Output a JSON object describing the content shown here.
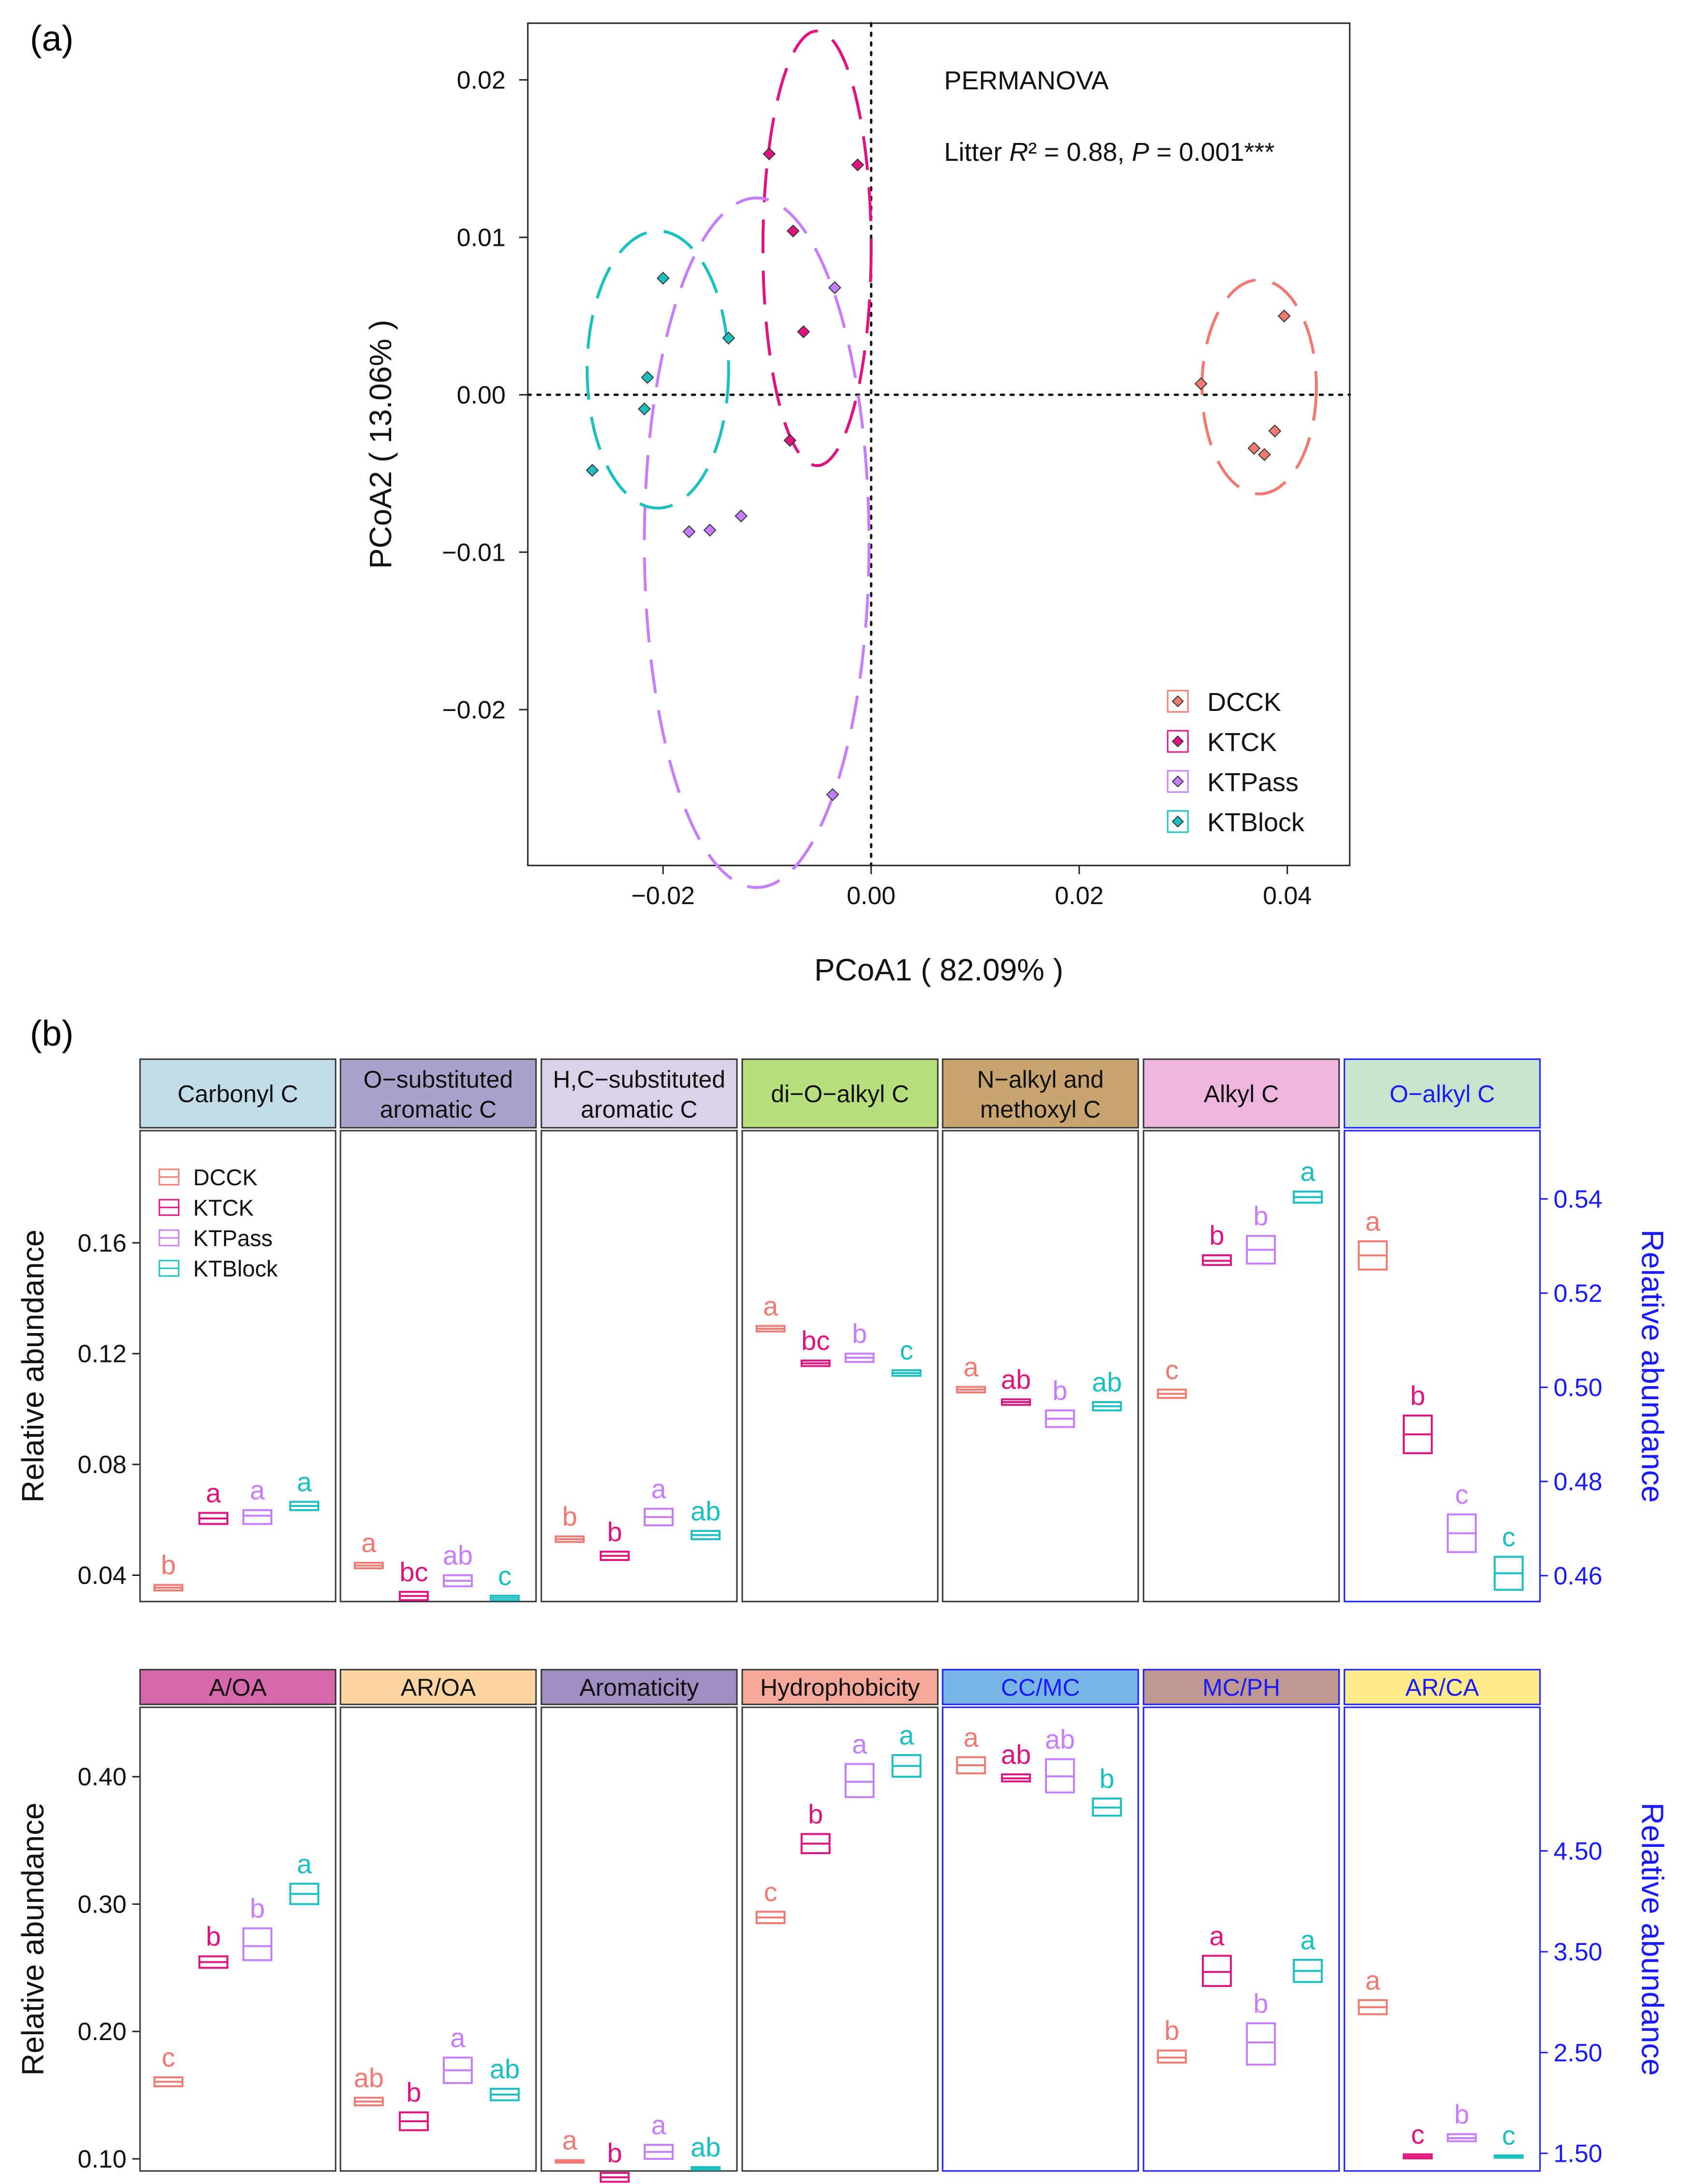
{
  "colors": {
    "DCCK": "#f07a72",
    "KTCK": "#e0137f",
    "KTPass": "#c77dff",
    "KTBlock": "#1abfbf",
    "axis": "#222222",
    "right_axis": "#1a1aff"
  },
  "panel_a": {
    "label": "(a)",
    "xlabel": "PCoA1 ( 82.09% )",
    "ylabel": "PCoA2 ( 13.06% )",
    "xlim": [
      -0.033,
      0.046
    ],
    "ylim": [
      -0.0299,
      0.0236
    ],
    "xticks": [
      {
        "v": -0.02,
        "t": "−0.02"
      },
      {
        "v": 0.0,
        "t": "0.00"
      },
      {
        "v": 0.02,
        "t": "0.02"
      },
      {
        "v": 0.04,
        "t": "0.04"
      }
    ],
    "yticks": [
      {
        "v": 0.02,
        "t": "0.02"
      },
      {
        "v": 0.01,
        "t": "0.01"
      },
      {
        "v": 0.0,
        "t": "0.00"
      },
      {
        "v": -0.01,
        "t": "−0.01"
      },
      {
        "v": -0.02,
        "t": "−0.02"
      }
    ],
    "permanova_title": "PERMANOVA",
    "stat": {
      "prefix": "Litter",
      "r2_label": "R² = 0.88, ",
      "p_symbol": "P",
      "p_rest": " = 0.001***"
    },
    "legend": [
      "DCCK",
      "KTCK",
      "KTPass",
      "KTBlock"
    ],
    "groups": [
      {
        "name": "DCCK",
        "points": [
          [
            0.0317,
            0.0007
          ],
          [
            0.0397,
            0.005
          ],
          [
            0.0368,
            -0.0034
          ],
          [
            0.0388,
            -0.0023
          ],
          [
            0.0378,
            -0.0038
          ]
        ],
        "ellipse": {
          "cx": 0.0373,
          "cy": 0.0005,
          "rx": 0.0055,
          "ry": 0.0068
        }
      },
      {
        "name": "KTCK",
        "points": [
          [
            -0.0098,
            0.0153
          ],
          [
            -0.0013,
            0.0146
          ],
          [
            -0.0075,
            0.0104
          ],
          [
            -0.0065,
            0.004
          ],
          [
            -0.0078,
            -0.0029
          ]
        ],
        "ellipse": {
          "cx": -0.0052,
          "cy": 0.0093,
          "rx": 0.0052,
          "ry": 0.0138
        }
      },
      {
        "name": "KTPass",
        "points": [
          [
            -0.0035,
            0.0068
          ],
          [
            -0.0175,
            -0.0087
          ],
          [
            -0.0155,
            -0.0086
          ],
          [
            -0.0125,
            -0.0077
          ],
          [
            -0.0037,
            -0.0254
          ]
        ],
        "ellipse": {
          "cx": -0.011,
          "cy": -0.0094,
          "rx": 0.0108,
          "ry": 0.0219
        }
      },
      {
        "name": "KTBlock",
        "points": [
          [
            -0.02,
            0.0074
          ],
          [
            -0.0215,
            0.0011
          ],
          [
            -0.0137,
            0.0036
          ],
          [
            -0.0218,
            -0.0009
          ],
          [
            -0.0268,
            -0.0048
          ]
        ],
        "ellipse": {
          "cx": -0.0205,
          "cy": 0.0016,
          "rx": 0.0068,
          "ry": 0.0088
        }
      }
    ]
  },
  "panel_b": {
    "label": "(b)",
    "ylabel_left": "Relative abundance",
    "ylabel_right": "Relative abundance",
    "legend": [
      "DCCK",
      "KTCK",
      "KTPass",
      "KTBlock"
    ],
    "rows": [
      {
        "left_ylim": [
          0.0305,
          0.2005
        ],
        "left_ticks": [
          {
            "v": 0.04,
            "t": "0.04"
          },
          {
            "v": 0.08,
            "t": "0.08"
          },
          {
            "v": 0.12,
            "t": "0.12"
          },
          {
            "v": 0.16,
            "t": "0.16"
          }
        ],
        "right_ylim": [
          0.4545,
          0.5545
        ],
        "right_ticks": [
          {
            "v": 0.46,
            "t": "0.46"
          },
          {
            "v": 0.48,
            "t": "0.48"
          },
          {
            "v": 0.5,
            "t": "0.50"
          },
          {
            "v": 0.52,
            "t": "0.52"
          },
          {
            "v": 0.54,
            "t": "0.54"
          }
        ],
        "panels": [
          {
            "title": "Carbonyl C",
            "header_color": "#c2dce8",
            "axis": "left",
            "boxes": [
              {
                "value": 0.0355,
                "low": 0.0345,
                "high": 0.0365,
                "letter": "b"
              },
              {
                "value": 0.0605,
                "low": 0.0585,
                "high": 0.0625,
                "letter": "a"
              },
              {
                "value": 0.0615,
                "low": 0.0585,
                "high": 0.0635,
                "letter": "a"
              },
              {
                "value": 0.065,
                "low": 0.0635,
                "high": 0.0665,
                "letter": "a"
              }
            ]
          },
          {
            "title": "O−substituted\naromatic C",
            "header_color": "#a9a3cc",
            "axis": "left",
            "boxes": [
              {
                "value": 0.0435,
                "low": 0.0425,
                "high": 0.0445,
                "letter": "a"
              },
              {
                "value": 0.0325,
                "low": 0.031,
                "high": 0.034,
                "letter": "bc"
              },
              {
                "value": 0.038,
                "low": 0.036,
                "high": 0.04,
                "letter": "ab"
              },
              {
                "value": 0.0318,
                "low": 0.031,
                "high": 0.0326,
                "letter": "c"
              }
            ]
          },
          {
            "title": "H,C−substituted\naromatic C",
            "header_color": "#dcd2e8",
            "axis": "left",
            "boxes": [
              {
                "value": 0.053,
                "low": 0.052,
                "high": 0.054,
                "letter": "b"
              },
              {
                "value": 0.047,
                "low": 0.0455,
                "high": 0.0485,
                "letter": "b"
              },
              {
                "value": 0.061,
                "low": 0.058,
                "high": 0.064,
                "letter": "a"
              },
              {
                "value": 0.0545,
                "low": 0.053,
                "high": 0.056,
                "letter": "ab"
              }
            ]
          },
          {
            "title": "di−O−alkyl C",
            "header_color": "#b7e07c",
            "axis": "left",
            "boxes": [
              {
                "value": 0.129,
                "low": 0.128,
                "high": 0.13,
                "letter": "a"
              },
              {
                "value": 0.1165,
                "low": 0.1155,
                "high": 0.1175,
                "letter": "bc"
              },
              {
                "value": 0.1185,
                "low": 0.117,
                "high": 0.12,
                "letter": "b"
              },
              {
                "value": 0.113,
                "low": 0.112,
                "high": 0.114,
                "letter": "c"
              }
            ]
          },
          {
            "title": "N−alkyl and\nmethoxyl C",
            "header_color": "#c8a46e",
            "axis": "left",
            "boxes": [
              {
                "value": 0.107,
                "low": 0.106,
                "high": 0.108,
                "letter": "a"
              },
              {
                "value": 0.1025,
                "low": 0.1015,
                "high": 0.1035,
                "letter": "ab"
              },
              {
                "value": 0.0965,
                "low": 0.0935,
                "high": 0.0995,
                "letter": "b"
              },
              {
                "value": 0.101,
                "low": 0.0995,
                "high": 0.1025,
                "letter": "ab"
              }
            ]
          },
          {
            "title": "Alkyl C",
            "header_color": "#efb6de",
            "axis": "left",
            "boxes": [
              {
                "value": 0.1055,
                "low": 0.104,
                "high": 0.107,
                "letter": "c"
              },
              {
                "value": 0.1535,
                "low": 0.152,
                "high": 0.1555,
                "letter": "b"
              },
              {
                "value": 0.1575,
                "low": 0.1525,
                "high": 0.1625,
                "letter": "b"
              },
              {
                "value": 0.1765,
                "low": 0.1745,
                "high": 0.1785,
                "letter": "a"
              }
            ]
          },
          {
            "title": "O−alkyl C",
            "header_color": "#c9e4cc",
            "axis": "right",
            "boxes": [
              {
                "value": 0.528,
                "low": 0.525,
                "high": 0.531,
                "letter": "a"
              },
              {
                "value": 0.49,
                "low": 0.486,
                "high": 0.494,
                "letter": "b"
              },
              {
                "value": 0.469,
                "low": 0.465,
                "high": 0.473,
                "letter": "c"
              },
              {
                "value": 0.4605,
                "low": 0.457,
                "high": 0.464,
                "letter": "c"
              }
            ]
          }
        ]
      },
      {
        "left_ylim": [
          0.0905,
          0.4545
        ],
        "left_ticks": [
          {
            "v": 0.1,
            "t": "0.10"
          },
          {
            "v": 0.2,
            "t": "0.20"
          },
          {
            "v": 0.3,
            "t": "0.30"
          },
          {
            "v": 0.4,
            "t": "0.40"
          }
        ],
        "right_ylim": [
          1.325,
          5.925
        ],
        "right_ticks": [
          {
            "v": 1.5,
            "t": "1.50"
          },
          {
            "v": 2.5,
            "t": "2.50"
          },
          {
            "v": 3.5,
            "t": "3.50"
          },
          {
            "v": 4.5,
            "t": "4.50"
          }
        ],
        "panels": [
          {
            "title": "A/OA",
            "header_color": "#d766ac",
            "axis": "left",
            "boxes": [
              {
                "value": 0.1605,
                "low": 0.157,
                "high": 0.164,
                "letter": "c"
              },
              {
                "value": 0.2545,
                "low": 0.25,
                "high": 0.259,
                "letter": "b"
              },
              {
                "value": 0.267,
                "low": 0.256,
                "high": 0.281,
                "letter": "b"
              },
              {
                "value": 0.308,
                "low": 0.3,
                "high": 0.316,
                "letter": "a"
              }
            ]
          },
          {
            "title": "AR/OA",
            "header_color": "#fdd5a0",
            "axis": "left",
            "boxes": [
              {
                "value": 0.145,
                "low": 0.142,
                "high": 0.148,
                "letter": "ab"
              },
              {
                "value": 0.1295,
                "low": 0.1225,
                "high": 0.1365,
                "letter": "b"
              },
              {
                "value": 0.1695,
                "low": 0.1595,
                "high": 0.1795,
                "letter": "a"
              },
              {
                "value": 0.1505,
                "low": 0.146,
                "high": 0.155,
                "letter": "ab"
              }
            ]
          },
          {
            "title": "Aromaticity",
            "header_color": "#a08dc2",
            "axis": "left",
            "boxes": [
              {
                "value": 0.098,
                "low": 0.097,
                "high": 0.099,
                "letter": "a"
              },
              {
                "value": 0.0855,
                "low": 0.082,
                "high": 0.089,
                "letter": "b"
              },
              {
                "value": 0.1055,
                "low": 0.1,
                "high": 0.111,
                "letter": "a"
              },
              {
                "value": 0.0925,
                "low": 0.0915,
                "high": 0.0935,
                "letter": "ab"
              }
            ]
          },
          {
            "title": "Hydrophobicity",
            "header_color": "#f6a99b",
            "axis": "left",
            "boxes": [
              {
                "value": 0.2895,
                "low": 0.285,
                "high": 0.294,
                "letter": "c"
              },
              {
                "value": 0.3475,
                "low": 0.34,
                "high": 0.355,
                "letter": "b"
              },
              {
                "value": 0.396,
                "low": 0.384,
                "high": 0.41,
                "letter": "a"
              },
              {
                "value": 0.4085,
                "low": 0.4,
                "high": 0.417,
                "letter": "a"
              }
            ]
          },
          {
            "title": "CC/MC",
            "header_color": "#79b4e6",
            "axis": "right",
            "boxes": [
              {
                "value": 5.35,
                "low": 5.27,
                "high": 5.43,
                "letter": "a"
              },
              {
                "value": 5.22,
                "low": 5.19,
                "high": 5.26,
                "letter": "ab"
              },
              {
                "value": 5.24,
                "low": 5.08,
                "high": 5.41,
                "letter": "ab"
              },
              {
                "value": 4.93,
                "low": 4.85,
                "high": 5.02,
                "letter": "b"
              }
            ]
          },
          {
            "title": "MC/PH",
            "header_color": "#c09891",
            "axis": "right",
            "boxes": [
              {
                "value": 2.45,
                "low": 2.4,
                "high": 2.52,
                "letter": "b"
              },
              {
                "value": 3.3,
                "low": 3.16,
                "high": 3.46,
                "letter": "a"
              },
              {
                "value": 2.6,
                "low": 2.38,
                "high": 2.79,
                "letter": "b"
              },
              {
                "value": 3.31,
                "low": 3.2,
                "high": 3.42,
                "letter": "a"
              }
            ]
          },
          {
            "title": "AR/CA",
            "header_color": "#ffeb8a",
            "axis": "right",
            "boxes": [
              {
                "value": 2.95,
                "low": 2.88,
                "high": 3.02,
                "letter": "a"
              },
              {
                "value": 1.47,
                "low": 1.45,
                "high": 1.49,
                "letter": "c"
              },
              {
                "value": 1.65,
                "low": 1.62,
                "high": 1.69,
                "letter": "b"
              },
              {
                "value": 1.47,
                "low": 1.46,
                "high": 1.48,
                "letter": "c"
              }
            ]
          }
        ]
      }
    ]
  }
}
